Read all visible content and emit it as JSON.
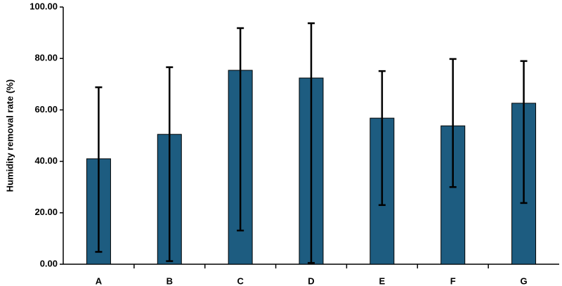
{
  "chart_data": {
    "type": "bar",
    "y_label": "Humidity removal rate (%)",
    "categories": [
      "A",
      "B",
      "C",
      "D",
      "E",
      "F",
      "G"
    ],
    "values": [
      41.0,
      50.5,
      75.4,
      72.4,
      56.8,
      53.8,
      62.6
    ],
    "error_upper": [
      68.8,
      76.6,
      91.8,
      93.7,
      75.1,
      79.8,
      79.0
    ],
    "error_lower": [
      4.8,
      1.2,
      13.1,
      0.5,
      23.0,
      30.0,
      23.8
    ],
    "color": "#1d5c80",
    "ylim": [
      0,
      100
    ],
    "yticks": [
      {
        "value": 0,
        "label": "0.00"
      },
      {
        "value": 20,
        "label": "20.00"
      },
      {
        "value": 40,
        "label": "40.00"
      },
      {
        "value": 60,
        "label": "60.00"
      },
      {
        "value": 80,
        "label": "80.00"
      },
      {
        "value": 100,
        "label": "100.00"
      }
    ],
    "grid": false
  }
}
